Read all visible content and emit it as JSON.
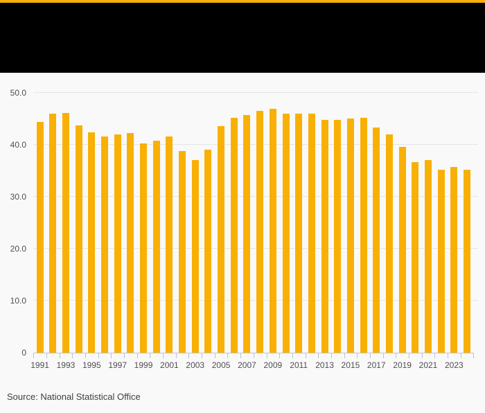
{
  "header": {
    "background": "#000000",
    "accent_bar_color": "#F9B005"
  },
  "chart_data": {
    "type": "bar",
    "title": "",
    "xlabel": "",
    "ylabel": "",
    "categories": [
      "1991",
      "1992",
      "1993",
      "1994",
      "1995",
      "1996",
      "1997",
      "1998",
      "1999",
      "2000",
      "2001",
      "2002",
      "2003",
      "2004",
      "2005",
      "2006",
      "2007",
      "2008",
      "2009",
      "2010",
      "2011",
      "2012",
      "2013",
      "2014",
      "2015",
      "2016",
      "2017",
      "2018",
      "2019",
      "2020",
      "2021",
      "2022",
      "2023",
      "2024"
    ],
    "values": [
      44.3,
      46.0,
      46.1,
      43.7,
      42.3,
      41.6,
      42.0,
      42.2,
      40.2,
      40.8,
      41.6,
      38.7,
      37.0,
      39.0,
      43.6,
      45.2,
      45.7,
      46.5,
      46.9,
      46.0,
      45.9,
      45.9,
      44.7,
      44.8,
      45.0,
      45.2,
      43.3,
      42.0,
      39.6,
      36.6,
      37.0,
      35.1,
      35.7,
      35.2
    ],
    "ylim": [
      0,
      50
    ],
    "y_ticks": [
      {
        "label": "50.0",
        "value": 50
      },
      {
        "label": "40.0",
        "value": 40
      },
      {
        "label": "30.0",
        "value": 30
      },
      {
        "label": "20.0",
        "value": 20
      },
      {
        "label": "10.0",
        "value": 10
      },
      {
        "label": "0",
        "value": 0
      }
    ],
    "x_tick_labels": [
      "1991",
      "1993",
      "1995",
      "1997",
      "1999",
      "2001",
      "2003",
      "2005",
      "2007",
      "2009",
      "2011",
      "2013",
      "2015",
      "2017",
      "2019",
      "2021",
      "2023"
    ],
    "grid": true,
    "legend": "none",
    "bar_color": "#F9B005",
    "grid_color": "#e5e5e5",
    "axis_color": "#bac3da",
    "tick_label_color": "#4e4e52",
    "background_color": "#f9f9f9"
  },
  "footer": {
    "source": "Source: National Statistical Office",
    "source_color": "#3e3e3e"
  }
}
